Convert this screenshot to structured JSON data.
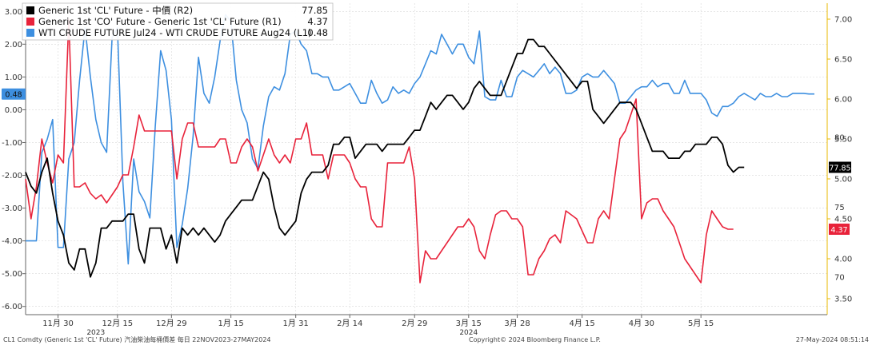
{
  "chart_data": {
    "type": "line",
    "legend": {
      "placement": "top-left",
      "items": [
        {
          "label": "Generic 1st 'CL' Future - 中價 (R2)",
          "value": "77.85",
          "color": "#000000"
        },
        {
          "label": "Generic 1st 'CO' Future - Generic 1st 'CL' Future (R1)",
          "value": "4.37",
          "color": "#e8223a"
        },
        {
          "label": "WTI CRUDE FUTURE Jul24 - WTI CRUDE FUTURE Aug24 (L1)",
          "value": "0.48",
          "color": "#3d8fe0"
        }
      ]
    },
    "axes": {
      "left": {
        "min": -6.25,
        "max": 3.25,
        "ticks": [
          "3.00",
          "2.00",
          "1.00",
          "0.00",
          "-1.00",
          "-2.00",
          "-3.00",
          "-4.00",
          "-5.00",
          "-6.00"
        ],
        "tick_values": [
          3,
          2,
          1,
          0,
          -1,
          -2,
          -3,
          -4,
          -5,
          -6
        ]
      },
      "r1": {
        "min": 3.3,
        "max": 7.2,
        "ticks": [
          "7.00",
          "6.50",
          "6.00",
          "5.50",
          "5.00",
          "4.50",
          "4.00",
          "3.50"
        ],
        "tick_values": [
          7.0,
          6.5,
          6.0,
          5.5,
          5.0,
          4.5,
          4.0,
          3.5
        ]
      },
      "r2": {
        "min": 67.3,
        "max": 89.6,
        "ticks": [
          "80",
          "75",
          "70"
        ],
        "tick_values": [
          80,
          75,
          70
        ]
      }
    },
    "x_ticks": [
      "11月 30",
      "12月 15",
      "12月 29",
      "1月 15",
      "1月 31",
      "2月 14",
      "2月 29",
      "3月 15",
      "3月 28",
      "4月 15",
      "4月 30",
      "5月 15"
    ],
    "x_tick_index": [
      6,
      17,
      27,
      38,
      50,
      60,
      72,
      82,
      91,
      103,
      114,
      125
    ],
    "year_labels": [
      {
        "text": "2023",
        "index": 13
      },
      {
        "text": "2024",
        "index": 82
      }
    ],
    "end_labels": {
      "blue": {
        "text": "0.48",
        "color": "#3d8fe0"
      },
      "black": {
        "text": "77.85",
        "color": "#000000"
      },
      "red": {
        "text": "4.37",
        "color": "#e8223a"
      }
    },
    "series": [
      {
        "key": "blue",
        "axis": "left",
        "color": "#3d8fe0",
        "values": [
          -4.0,
          -4.0,
          -4.0,
          -1.3,
          -0.9,
          -0.3,
          -4.2,
          -4.2,
          -1.5,
          -1.0,
          0.9,
          2.5,
          1.0,
          -0.3,
          -1.0,
          -1.3,
          2.2,
          2.5,
          -2.2,
          -4.7,
          -1.5,
          -2.5,
          -2.8,
          -3.3,
          -0.5,
          1.8,
          1.2,
          -0.3,
          -4.2,
          -3.5,
          -2.4,
          -0.8,
          1.6,
          0.5,
          0.2,
          1.0,
          2.1,
          2.9,
          2.7,
          0.9,
          0.0,
          -0.4,
          -1.5,
          -1.8,
          -0.5,
          0.4,
          0.7,
          0.6,
          1.1,
          2.3,
          2.4,
          2.0,
          1.8,
          1.1,
          1.1,
          1.0,
          1.0,
          0.6,
          0.6,
          0.7,
          0.8,
          0.5,
          0.2,
          0.2,
          0.9,
          0.5,
          0.2,
          0.3,
          0.7,
          0.5,
          0.6,
          0.5,
          0.8,
          1.0,
          1.4,
          1.8,
          1.7,
          2.3,
          2.0,
          1.7,
          2.0,
          2.0,
          1.6,
          1.4,
          2.4,
          0.4,
          0.3,
          0.3,
          0.9,
          0.4,
          0.4,
          1.0,
          1.2,
          1.1,
          1.0,
          1.2,
          1.4,
          1.1,
          1.3,
          1.1,
          0.5,
          0.5,
          0.6,
          1.0,
          1.1,
          1.0,
          1.0,
          1.2,
          1.0,
          0.8,
          0.2,
          0.2,
          0.4,
          0.6,
          0.7,
          0.7,
          0.9,
          0.7,
          0.8,
          0.8,
          0.5,
          0.5,
          0.9,
          0.5,
          0.5,
          0.5,
          0.3,
          -0.1,
          -0.2,
          0.1,
          0.1,
          0.2,
          0.4,
          0.5,
          0.4,
          0.3,
          0.5,
          0.4,
          0.4,
          0.5,
          0.4,
          0.4,
          0.5,
          0.5,
          0.5,
          0.48,
          0.48
        ]
      },
      {
        "key": "red",
        "axis": "r1",
        "color": "#e8223a",
        "values": [
          5.0,
          4.5,
          4.9,
          5.5,
          5.2,
          4.95,
          5.3,
          5.2,
          7.0,
          4.9,
          4.9,
          4.95,
          4.82,
          4.75,
          4.8,
          4.7,
          4.8,
          4.9,
          5.05,
          5.05,
          5.4,
          5.8,
          5.6,
          5.6,
          5.6,
          5.6,
          5.6,
          5.6,
          5.0,
          5.5,
          5.7,
          5.7,
          5.4,
          5.4,
          5.4,
          5.4,
          5.5,
          5.5,
          5.2,
          5.2,
          5.4,
          5.5,
          5.4,
          5.1,
          5.3,
          5.5,
          5.3,
          5.2,
          5.3,
          5.2,
          5.5,
          5.5,
          5.7,
          5.3,
          5.3,
          5.3,
          5.0,
          5.3,
          5.3,
          5.3,
          5.2,
          5.0,
          4.9,
          4.9,
          4.5,
          4.4,
          4.4,
          5.2,
          5.2,
          5.2,
          5.2,
          5.4,
          5.0,
          3.7,
          4.1,
          4.0,
          4.0,
          4.1,
          4.2,
          4.3,
          4.4,
          4.4,
          4.5,
          4.4,
          4.1,
          4.0,
          4.3,
          4.55,
          4.6,
          4.6,
          4.5,
          4.5,
          4.4,
          3.8,
          3.8,
          4.0,
          4.1,
          4.25,
          4.3,
          4.2,
          4.6,
          4.55,
          4.5,
          4.35,
          4.2,
          4.2,
          4.5,
          4.6,
          4.5,
          5.0,
          5.5,
          5.6,
          5.8,
          6.0,
          4.5,
          4.7,
          4.75,
          4.75,
          4.6,
          4.5,
          4.4,
          4.2,
          4.0,
          3.9,
          3.8,
          3.7,
          4.3,
          4.6,
          4.5,
          4.4,
          4.37,
          4.37
        ]
      },
      {
        "key": "black",
        "axis": "r2",
        "color": "#000000",
        "values": [
          77.5,
          76.5,
          76.0,
          77.5,
          78.5,
          76.0,
          74.0,
          73.0,
          71.0,
          70.5,
          72.0,
          72.0,
          70.0,
          71.0,
          73.5,
          73.5,
          74.0,
          74.0,
          74.0,
          74.5,
          74.5,
          72.0,
          71.0,
          73.5,
          73.5,
          73.5,
          72.0,
          73.0,
          71.0,
          73.5,
          73.0,
          73.5,
          73.0,
          73.5,
          73.0,
          72.5,
          73.0,
          74.0,
          74.5,
          75.0,
          75.5,
          75.5,
          75.5,
          76.5,
          77.5,
          77.0,
          75.0,
          73.5,
          73.0,
          73.5,
          74.0,
          76.0,
          77.0,
          77.5,
          77.5,
          77.5,
          78.0,
          79.5,
          79.5,
          80.0,
          80.0,
          78.5,
          79.0,
          79.5,
          79.5,
          79.5,
          79.0,
          79.5,
          79.5,
          79.5,
          79.5,
          80.0,
          80.5,
          80.5,
          81.5,
          82.5,
          82.0,
          82.5,
          83.0,
          83.0,
          82.5,
          82.0,
          82.5,
          83.5,
          84.0,
          83.5,
          83.0,
          83.0,
          83.0,
          84.0,
          85.0,
          86.0,
          86.0,
          87.0,
          87.0,
          86.5,
          86.5,
          86.0,
          85.5,
          85.0,
          84.5,
          84.0,
          83.5,
          84.0,
          84.0,
          82.0,
          81.5,
          81.0,
          81.5,
          82.0,
          82.5,
          82.5,
          82.5,
          82.0,
          81.0,
          80.0,
          79.0,
          79.0,
          79.0,
          78.5,
          78.5,
          78.5,
          79.0,
          79.0,
          79.5,
          79.5,
          79.5,
          80.0,
          80.0,
          79.5,
          78.0,
          77.5,
          77.85,
          77.85
        ]
      }
    ]
  },
  "footer": {
    "left": "CL1 Comdty (Generic 1st 'CL' Future) 汽油柴油每桶價差  每日 22NOV2023-27MAY2024",
    "center": "Copyright© 2024 Bloomberg Finance L.P.",
    "right": "27-May-2024 08:51:14"
  }
}
